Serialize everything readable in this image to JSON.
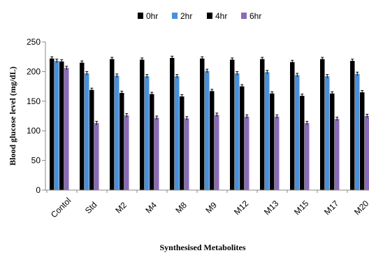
{
  "chart_data": {
    "type": "bar",
    "title": "",
    "xlabel": "Synthesised Metabolites",
    "ylabel": "Blood glucose level (mg/dL)",
    "ylim": [
      0,
      250
    ],
    "yticks": [
      0,
      50,
      100,
      150,
      200,
      250
    ],
    "grid": false,
    "legend_position": "top",
    "categories": [
      "Contol",
      "Std",
      "M2",
      "M4",
      "M8",
      "M9",
      "M12",
      "M13",
      "M15",
      "M17",
      "M20"
    ],
    "series": [
      {
        "name": "0hr",
        "color": "#000000",
        "values": [
          222,
          215,
          221,
          220,
          223,
          222,
          220,
          221,
          216,
          221,
          218
        ]
      },
      {
        "name": "2hr",
        "color": "#4a90d9",
        "values": [
          218,
          197,
          193,
          192,
          192,
          201,
          197,
          199,
          194,
          192,
          196
        ]
      },
      {
        "name": "4hr",
        "color": "#000000",
        "values": [
          217,
          169,
          164,
          162,
          158,
          167,
          175,
          163,
          159,
          163,
          165
        ]
      },
      {
        "name": "6hr",
        "color": "#8a6bb8",
        "values": [
          206,
          113,
          126,
          122,
          121,
          127,
          124,
          124,
          113,
          120,
          125
        ]
      }
    ]
  }
}
